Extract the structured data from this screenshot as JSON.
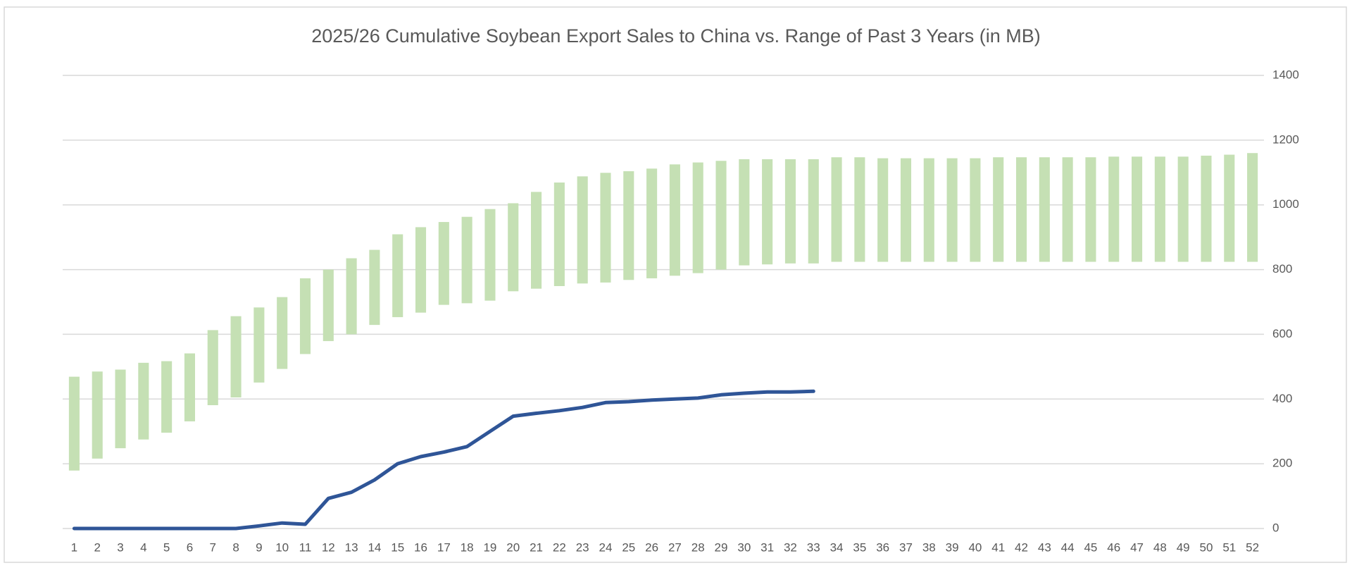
{
  "chart_data": {
    "type": "combo",
    "title": "2025/26 Cumulative Soybean Export Sales to China vs. Range of Past 3 Years (in MB)",
    "categories": [
      1,
      2,
      3,
      4,
      5,
      6,
      7,
      8,
      9,
      10,
      11,
      12,
      13,
      14,
      15,
      16,
      17,
      18,
      19,
      20,
      21,
      22,
      23,
      24,
      25,
      26,
      27,
      28,
      29,
      30,
      31,
      32,
      33,
      34,
      35,
      36,
      37,
      38,
      39,
      40,
      41,
      42,
      43,
      44,
      45,
      46,
      47,
      48,
      49,
      50,
      51,
      52
    ],
    "range": {
      "color": "#c5e0b4",
      "low": [
        179,
        216,
        248,
        275,
        296,
        331,
        381,
        405,
        451,
        493,
        539,
        579,
        600,
        629,
        653,
        667,
        691,
        696,
        704,
        733,
        741,
        749,
        757,
        760,
        768,
        773,
        781,
        789,
        800,
        813,
        816,
        819,
        819,
        824,
        824,
        824,
        824,
        824,
        824,
        824,
        824,
        824,
        824,
        824,
        824,
        824,
        824,
        824,
        824,
        824,
        824,
        824
      ],
      "high": [
        469,
        485,
        491,
        512,
        517,
        541,
        613,
        656,
        683,
        715,
        773,
        800,
        835,
        861,
        909,
        931,
        947,
        963,
        987,
        1005,
        1040,
        1069,
        1088,
        1099,
        1104,
        1112,
        1125,
        1131,
        1136,
        1141,
        1141,
        1141,
        1141,
        1147,
        1147,
        1144,
        1144,
        1144,
        1144,
        1144,
        1147,
        1147,
        1147,
        1147,
        1147,
        1149,
        1149,
        1149,
        1149,
        1152,
        1155,
        1160
      ]
    },
    "line": {
      "color": "#2f5597",
      "values": [
        0,
        0,
        0,
        0,
        0,
        0,
        0,
        0,
        8,
        17,
        13,
        93,
        112,
        150,
        200,
        222,
        236,
        253,
        300,
        347,
        356,
        364,
        374,
        389,
        392,
        397,
        400,
        403,
        413,
        418,
        422,
        422,
        424
      ]
    },
    "ylim": [
      0,
      1400
    ],
    "yticks": [
      0,
      200,
      400,
      600,
      800,
      1000,
      1200,
      1400
    ],
    "grid": true
  }
}
